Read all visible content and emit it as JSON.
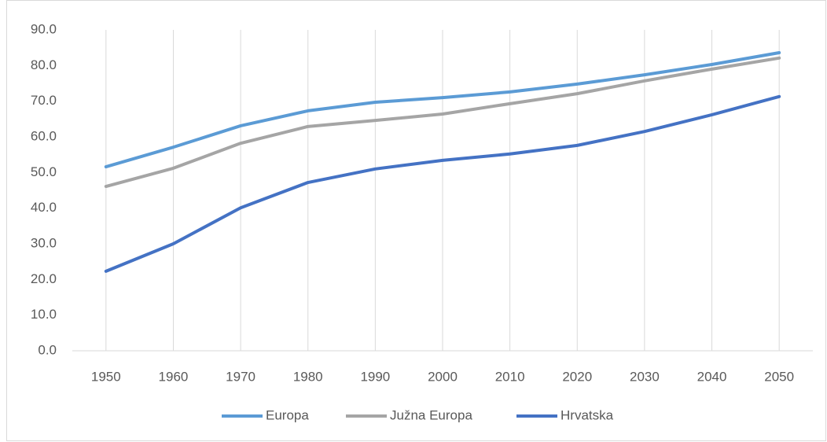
{
  "chart_data": {
    "type": "line",
    "categories": [
      "1950",
      "1960",
      "1970",
      "1980",
      "1990",
      "2000",
      "2010",
      "2020",
      "2030",
      "2040",
      "2050"
    ],
    "series": [
      {
        "name": "Europa",
        "color": "#5b9bd5",
        "values": [
          51.6,
          57.1,
          63.1,
          67.3,
          69.7,
          71.0,
          72.6,
          74.8,
          77.4,
          80.3,
          83.6
        ]
      },
      {
        "name": "Južna Europa",
        "color": "#a5a5a5",
        "values": [
          46.1,
          51.2,
          58.2,
          62.9,
          64.6,
          66.4,
          69.3,
          72.1,
          75.7,
          79.0,
          82.1
        ]
      },
      {
        "name": "Hrvatska",
        "color": "#4472c4",
        "values": [
          22.3,
          30.0,
          40.1,
          47.2,
          51.0,
          53.4,
          55.2,
          57.6,
          61.5,
          66.2,
          71.3
        ]
      }
    ],
    "ylim": [
      0,
      90
    ],
    "yticks": [
      {
        "value": 0,
        "label": "0.0"
      },
      {
        "value": 10,
        "label": "10.0"
      },
      {
        "value": 20,
        "label": "20.0"
      },
      {
        "value": 30,
        "label": "30.0"
      },
      {
        "value": 40,
        "label": "40.0"
      },
      {
        "value": 50,
        "label": "50.0"
      },
      {
        "value": 60,
        "label": "60.0"
      },
      {
        "value": 70,
        "label": "70.0"
      },
      {
        "value": 80,
        "label": "80.0"
      },
      {
        "value": 90,
        "label": "90.0"
      }
    ],
    "grid": true,
    "legend": "bottom"
  }
}
